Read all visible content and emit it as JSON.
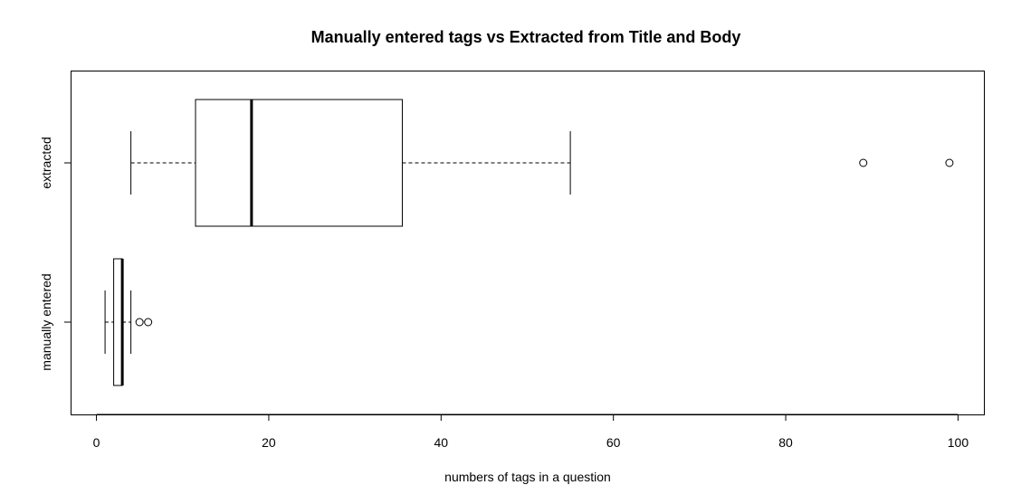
{
  "chart_data": {
    "type": "boxplot",
    "orientation": "horizontal",
    "title": "Manually entered tags vs Extracted from Title and Body",
    "xlabel": "numbers of tags in a question",
    "ylabel": "",
    "xlim": [
      -3,
      103
    ],
    "xticks": [
      0,
      20,
      40,
      60,
      80,
      100
    ],
    "xtick_labels": [
      "0",
      "20",
      "40",
      "60",
      "80",
      "100"
    ],
    "grid": false,
    "legend": "none",
    "categories": [
      "manually entered",
      "extracted"
    ],
    "boxes": [
      {
        "name": "manually entered",
        "whisker_low": 1,
        "q1": 2,
        "median": 3,
        "q3": 3,
        "whisker_high": 4,
        "outliers": [
          5,
          6
        ]
      },
      {
        "name": "extracted",
        "whisker_low": 4,
        "q1": 11.5,
        "median": 18,
        "q3": 35.5,
        "whisker_high": 55,
        "outliers": [
          89,
          99
        ]
      }
    ]
  }
}
